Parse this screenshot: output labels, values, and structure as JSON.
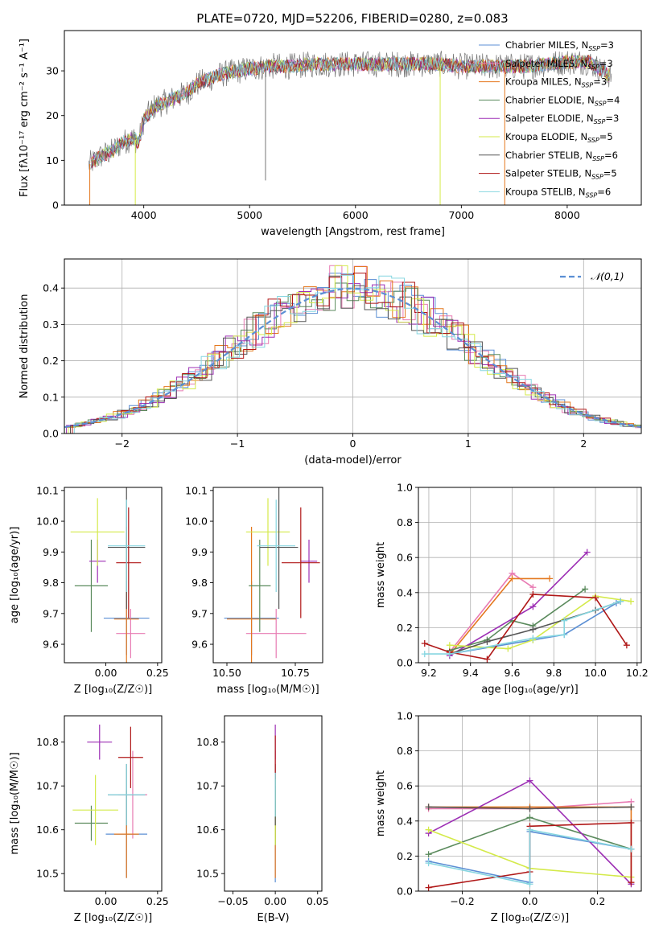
{
  "figure": {
    "title": "PLATE=0720, MJD=52206, FIBERID=0280, z=0.083"
  },
  "models": [
    {
      "name": "Chabrier MILES",
      "nssp": "3",
      "color": "#5b8fd4"
    },
    {
      "name": "Salpeter MILES",
      "nssp": "3",
      "color": "#e87bb3"
    },
    {
      "name": "Kroupa MILES",
      "nssp": "3",
      "color": "#e4781f"
    },
    {
      "name": "Chabrier ELODIE",
      "nssp": "4",
      "color": "#5a8a5c"
    },
    {
      "name": "Salpeter ELODIE",
      "nssp": "3",
      "color": "#9d2fb5"
    },
    {
      "name": "Kroupa ELODIE",
      "nssp": "5",
      "color": "#d4ea4a"
    },
    {
      "name": "Chabrier STELIB",
      "nssp": "6",
      "color": "#555555"
    },
    {
      "name": "Salpeter STELIB",
      "nssp": "5",
      "color": "#b01818"
    },
    {
      "name": "Kroupa STELIB",
      "nssp": "6",
      "color": "#86d6e0"
    }
  ],
  "chart_data": [
    {
      "id": "spectrum",
      "type": "line",
      "xlabel": "wavelength [Angstrom, rest frame]",
      "ylabel": "Flux [fλ10⁻¹⁷ erg cm⁻² s⁻¹ A⁻¹]",
      "xlim": [
        3250,
        8700
      ],
      "ylim": [
        0,
        39
      ],
      "xticks": [
        "4000",
        "5000",
        "6000",
        "7000",
        "8000"
      ],
      "xtick_values": [
        4000,
        5000,
        6000,
        7000,
        8000
      ],
      "yticks": [
        "0",
        "10",
        "20",
        "30"
      ],
      "ytick_values": [
        0,
        10,
        20,
        30
      ],
      "legend": "right",
      "continuum": {
        "x": [
          3480,
          3600,
          3700,
          3800,
          3900,
          3950,
          4000,
          4100,
          4200,
          4300,
          4400,
          4500,
          4600,
          4700,
          4800,
          4900,
          5000,
          5200,
          5400,
          5600,
          5800,
          6000,
          6200,
          6400,
          6600,
          6800,
          7000,
          7200,
          7400,
          7600,
          7800,
          8000,
          8200,
          8400
        ],
        "y": [
          9,
          11,
          12,
          14,
          15,
          14,
          19,
          22,
          23,
          24,
          25,
          27,
          28,
          29,
          29.5,
          30,
          30.5,
          31,
          31,
          31.5,
          31.5,
          31.5,
          31.5,
          31.5,
          31.5,
          31.5,
          31,
          31,
          31,
          31,
          31.5,
          32,
          32,
          29
        ]
      }
    },
    {
      "id": "residuals",
      "type": "histogram",
      "xlabel": "(data-model)/error",
      "ylabel": "Normed distribution",
      "xlim": [
        -2.5,
        2.5
      ],
      "ylim": [
        0,
        0.48
      ],
      "xticks": [
        "−2",
        "−1",
        "0",
        "1",
        "2"
      ],
      "xtick_values": [
        -2,
        -1,
        0,
        1,
        2
      ],
      "yticks": [
        "0.0",
        "0.1",
        "0.2",
        "0.3",
        "0.4"
      ],
      "ytick_values": [
        0,
        0.1,
        0.2,
        0.3,
        0.4
      ],
      "grid": true,
      "legend_label": "𝒩(0,1)",
      "legend": "top-right",
      "curve": {
        "type": "gaussian",
        "mean": 0,
        "sigma": 1,
        "color": "#5b8fd4"
      }
    },
    {
      "id": "age-vs-Z",
      "type": "errorbar",
      "xlabel": "Z [log₁₀(Z/Z☉)]",
      "ylabel": "age  [log₁₀(age/yr)]",
      "xlim": [
        -0.2,
        0.27
      ],
      "ylim": [
        9.54,
        10.11
      ],
      "xticks": [
        "0.00",
        "0.25"
      ],
      "xtick_values": [
        0,
        0.25
      ],
      "yticks": [
        "9.6",
        "9.7",
        "9.8",
        "9.9",
        "10.0",
        "10.1"
      ],
      "ytick_values": [
        9.6,
        9.7,
        9.8,
        9.9,
        10.0,
        10.1
      ],
      "points": [
        {
          "model": 0,
          "x": 0.1,
          "xerr": 0.11,
          "y": 9.685,
          "yerr": 0.12
        },
        {
          "model": 1,
          "x": 0.12,
          "xerr": 0.07,
          "y": 9.635,
          "yerr": 0.08
        },
        {
          "model": 2,
          "x": 0.1,
          "xerr": 0.06,
          "y": 9.682,
          "yerr": 0.3
        },
        {
          "model": 3,
          "x": -0.07,
          "xerr": 0.08,
          "y": 9.79,
          "yerr": 0.15
        },
        {
          "model": 4,
          "x": -0.04,
          "xerr": 0.04,
          "y": 9.87,
          "yerr": 0.07
        },
        {
          "model": 5,
          "x": -0.04,
          "xerr": 0.13,
          "y": 9.965,
          "yerr": 0.11
        },
        {
          "model": 6,
          "x": 0.1,
          "xerr": 0.09,
          "y": 9.915,
          "yerr": 0.2
        },
        {
          "model": 7,
          "x": 0.11,
          "xerr": 0.06,
          "y": 9.865,
          "yerr": 0.18
        },
        {
          "model": 8,
          "x": 0.1,
          "xerr": 0.09,
          "y": 9.92,
          "yerr": 0.15
        }
      ]
    },
    {
      "id": "age-vs-mass",
      "type": "errorbar",
      "xlabel": "mass [log₁₀(M/M☉)]",
      "ylabel": "",
      "xlim": [
        10.45,
        10.85
      ],
      "ylim": [
        9.54,
        10.11
      ],
      "xticks": [
        "10.50",
        "10.75"
      ],
      "xtick_values": [
        10.5,
        10.75
      ],
      "yticks": [
        "9.6",
        "9.7",
        "9.8",
        "9.9",
        "10.0",
        "10.1"
      ],
      "ytick_values": [
        9.6,
        9.7,
        9.8,
        9.9,
        10.0,
        10.1
      ],
      "points": [
        {
          "model": 0,
          "x": 10.59,
          "xerr": 0.1,
          "y": 9.685,
          "yerr": 0.12
        },
        {
          "model": 1,
          "x": 10.68,
          "xerr": 0.11,
          "y": 9.635,
          "yerr": 0.08
        },
        {
          "model": 2,
          "x": 10.59,
          "xerr": 0.09,
          "y": 9.682,
          "yerr": 0.3
        },
        {
          "model": 3,
          "x": 10.62,
          "xerr": 0.04,
          "y": 9.79,
          "yerr": 0.15
        },
        {
          "model": 4,
          "x": 10.8,
          "xerr": 0.03,
          "y": 9.87,
          "yerr": 0.07
        },
        {
          "model": 5,
          "x": 10.65,
          "xerr": 0.08,
          "y": 9.965,
          "yerr": 0.11
        },
        {
          "model": 6,
          "x": 10.69,
          "xerr": 0.07,
          "y": 9.915,
          "yerr": 0.2
        },
        {
          "model": 7,
          "x": 10.77,
          "xerr": 0.07,
          "y": 9.865,
          "yerr": 0.18
        },
        {
          "model": 8,
          "x": 10.68,
          "xerr": 0.07,
          "y": 9.92,
          "yerr": 0.15
        }
      ]
    },
    {
      "id": "weight-vs-age",
      "type": "line",
      "xlabel": "age  [log₁₀(age/yr)]",
      "ylabel": "mass weight",
      "xlim": [
        9.15,
        10.22
      ],
      "ylim": [
        0,
        1
      ],
      "xticks": [
        "9.2",
        "9.4",
        "9.6",
        "9.8",
        "10.0",
        "10.2"
      ],
      "xtick_values": [
        9.2,
        9.4,
        9.6,
        9.8,
        10.0,
        10.2
      ],
      "yticks": [
        "0.0",
        "0.2",
        "0.4",
        "0.6",
        "0.8",
        "1.0"
      ],
      "ytick_values": [
        0,
        0.2,
        0.4,
        0.6,
        0.8,
        1.0
      ],
      "grid": true,
      "series": [
        {
          "model": 0,
          "x": [
            9.3,
            9.7,
            9.85,
            10.1
          ],
          "y": [
            0.05,
            0.13,
            0.16,
            0.34
          ]
        },
        {
          "model": 1,
          "x": [
            9.3,
            9.6,
            9.7
          ],
          "y": [
            0.06,
            0.51,
            0.43
          ]
        },
        {
          "model": 2,
          "x": [
            9.31,
            9.6,
            9.78
          ],
          "y": [
            0.06,
            0.48,
            0.48
          ]
        },
        {
          "model": 3,
          "x": [
            9.3,
            9.48,
            9.6,
            9.7,
            9.95
          ],
          "y": [
            0.07,
            0.13,
            0.24,
            0.21,
            0.42
          ]
        },
        {
          "model": 4,
          "x": [
            9.3,
            9.7,
            9.96
          ],
          "y": [
            0.04,
            0.32,
            0.63
          ]
        },
        {
          "model": 5,
          "x": [
            9.3,
            9.58,
            9.7,
            10.0,
            10.17
          ],
          "y": [
            0.1,
            0.08,
            0.13,
            0.38,
            0.35
          ]
        },
        {
          "model": 6,
          "x": [
            9.3,
            9.48,
            9.7,
            10.0,
            10.12
          ],
          "y": [
            0.05,
            0.12,
            0.19,
            0.3,
            0.35
          ]
        },
        {
          "model": 7,
          "x": [
            9.18,
            9.3,
            9.48,
            9.7,
            10.0,
            10.15
          ],
          "y": [
            0.11,
            0.06,
            0.02,
            0.39,
            0.37,
            0.1
          ]
        },
        {
          "model": 8,
          "x": [
            9.18,
            9.3,
            9.7,
            9.85,
            9.85,
            10.12
          ],
          "y": [
            0.05,
            0.05,
            0.14,
            0.16,
            0.24,
            0.35
          ]
        }
      ]
    },
    {
      "id": "mass-vs-Z",
      "type": "errorbar",
      "xlabel": "Z [log₁₀(Z/Z☉)]",
      "ylabel": "mass [log₁₀(M/M☉)]",
      "xlim": [
        -0.2,
        0.27
      ],
      "ylim": [
        10.46,
        10.86
      ],
      "xticks": [
        "0.00",
        "0.25"
      ],
      "xtick_values": [
        0,
        0.25
      ],
      "yticks": [
        "10.5",
        "10.6",
        "10.7",
        "10.8"
      ],
      "ytick_values": [
        10.5,
        10.6,
        10.7,
        10.8
      ],
      "points": [
        {
          "model": 0,
          "x": 0.1,
          "xerr": 0.1,
          "y": 10.59,
          "yerr": 0.1
        },
        {
          "model": 1,
          "x": 0.13,
          "xerr": 0.07,
          "y": 10.68,
          "yerr": 0.1
        },
        {
          "model": 2,
          "x": 0.1,
          "xerr": 0.06,
          "y": 10.59,
          "yerr": 0.1
        },
        {
          "model": 3,
          "x": -0.07,
          "xerr": 0.08,
          "y": 10.615,
          "yerr": 0.04
        },
        {
          "model": 4,
          "x": -0.03,
          "xerr": 0.06,
          "y": 10.8,
          "yerr": 0.04
        },
        {
          "model": 5,
          "x": -0.05,
          "xerr": 0.11,
          "y": 10.645,
          "yerr": 0.08
        },
        {
          "model": 6,
          "x": 0.1,
          "xerr": 0.09,
          "y": 10.68,
          "yerr": 0.07
        },
        {
          "model": 7,
          "x": 0.12,
          "xerr": 0.06,
          "y": 10.765,
          "yerr": 0.07
        },
        {
          "model": 8,
          "x": 0.1,
          "xerr": 0.09,
          "y": 10.68,
          "yerr": 0.07
        }
      ]
    },
    {
      "id": "mass-vs-EBV",
      "type": "errorbar",
      "xlabel": "E(B-V)",
      "ylabel": "",
      "xlim": [
        -0.06,
        0.055
      ],
      "ylim": [
        10.46,
        10.86
      ],
      "xticks": [
        "−0.05",
        "0.00",
        "0.05"
      ],
      "xtick_values": [
        -0.05,
        0,
        0.05
      ],
      "yticks": [
        "10.5",
        "10.6",
        "10.7",
        "10.8"
      ],
      "ytick_values": [
        10.5,
        10.6,
        10.7,
        10.8
      ],
      "points": [
        {
          "model": 0,
          "x": 0,
          "xerr": 0,
          "y": 10.59,
          "yerr": 0.11
        },
        {
          "model": 1,
          "x": 0,
          "xerr": 0,
          "y": 10.68,
          "yerr": 0.1
        },
        {
          "model": 2,
          "x": 0,
          "xerr": 0,
          "y": 10.59,
          "yerr": 0.1
        },
        {
          "model": 3,
          "x": 0,
          "xerr": 0,
          "y": 10.615,
          "yerr": 0.05
        },
        {
          "model": 4,
          "x": 0,
          "xerr": 0,
          "y": 10.8,
          "yerr": 0.04
        },
        {
          "model": 5,
          "x": 0,
          "xerr": 0,
          "y": 10.645,
          "yerr": 0.08
        },
        {
          "model": 6,
          "x": 0,
          "xerr": 0,
          "y": 10.68,
          "yerr": 0.07
        },
        {
          "model": 7,
          "x": 0,
          "xerr": 0,
          "y": 10.765,
          "yerr": 0.05
        },
        {
          "model": 8,
          "x": 0,
          "xerr": 0,
          "y": 10.68,
          "yerr": 0.05
        }
      ]
    },
    {
      "id": "weight-vs-Z",
      "type": "line",
      "xlabel": "Z [log₁₀(Z/Z☉)]",
      "ylabel": "mass weight",
      "xlim": [
        -0.33,
        0.33
      ],
      "ylim": [
        0,
        1
      ],
      "xticks": [
        "−0.2",
        "0.0",
        "0.2"
      ],
      "xtick_values": [
        -0.2,
        0,
        0.2
      ],
      "yticks": [
        "0.0",
        "0.2",
        "0.4",
        "0.6",
        "0.8",
        "1.0"
      ],
      "ytick_values": [
        0,
        0.2,
        0.4,
        0.6,
        0.8,
        1.0
      ],
      "grid": true,
      "series": [
        {
          "model": 0,
          "x": [
            -0.3,
            0.0,
            0.0,
            0.3
          ],
          "y": [
            0.17,
            0.05,
            0.34,
            0.24
          ]
        },
        {
          "model": 1,
          "x": [
            -0.3,
            0.0,
            0.3
          ],
          "y": [
            0.47,
            0.47,
            0.51
          ]
        },
        {
          "model": 2,
          "x": [
            -0.3,
            0.0,
            0.3,
            0.3
          ],
          "y": [
            0.48,
            0.48,
            0.48,
            0.05
          ]
        },
        {
          "model": 3,
          "x": [
            -0.3,
            0.0,
            0.3
          ],
          "y": [
            0.21,
            0.42,
            0.24
          ]
        },
        {
          "model": 4,
          "x": [
            -0.3,
            0.0,
            0.3
          ],
          "y": [
            0.33,
            0.63,
            0.04
          ]
        },
        {
          "model": 5,
          "x": [
            -0.3,
            0.0,
            0.3
          ],
          "y": [
            0.35,
            0.13,
            0.08
          ]
        },
        {
          "model": 6,
          "x": [
            -0.3,
            0.0,
            0.3
          ],
          "y": [
            0.48,
            0.47,
            0.48
          ]
        },
        {
          "model": 7,
          "x": [
            -0.3,
            0.0,
            0.0,
            0.3,
            0.3
          ],
          "y": [
            0.02,
            0.11,
            0.37,
            0.39,
            0.05
          ]
        },
        {
          "model": 8,
          "x": [
            -0.3,
            0.0,
            0.0,
            0.3
          ],
          "y": [
            0.16,
            0.04,
            0.35,
            0.24
          ]
        }
      ]
    }
  ]
}
